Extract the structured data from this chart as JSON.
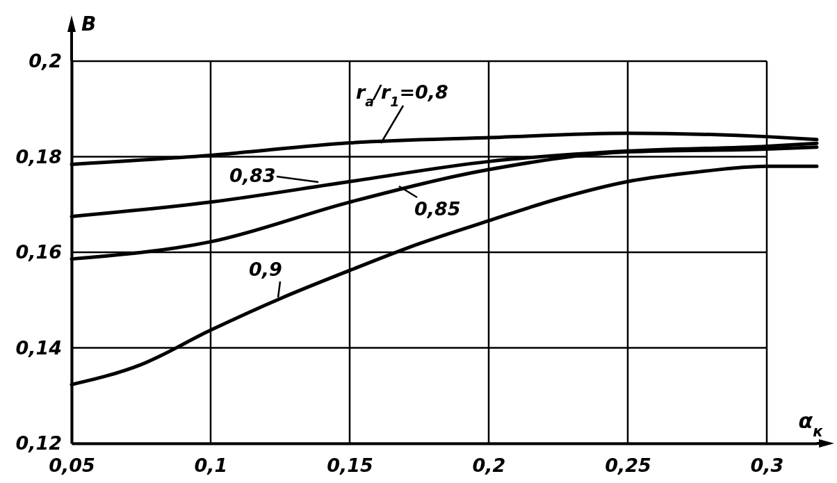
{
  "chart_data": {
    "type": "line",
    "xlabel": "α$_{к}$",
    "ylabel": "B",
    "xlim": [
      0.05,
      0.318
    ],
    "ylim": [
      0.12,
      0.2
    ],
    "xticks": [
      {
        "value": 0.05,
        "label": "0,05"
      },
      {
        "value": 0.1,
        "label": "0,1"
      },
      {
        "value": 0.15,
        "label": "0,15"
      },
      {
        "value": 0.2,
        "label": "0,2"
      },
      {
        "value": 0.25,
        "label": "0,25"
      },
      {
        "value": 0.3,
        "label": "0,3"
      }
    ],
    "yticks": [
      {
        "value": 0.12,
        "label": "0,12"
      },
      {
        "value": 0.14,
        "label": "0,14"
      },
      {
        "value": 0.16,
        "label": "0,16"
      },
      {
        "value": 0.18,
        "label": "0,18"
      },
      {
        "value": 0.2,
        "label": "0,2"
      }
    ],
    "grid": true,
    "marker": "none",
    "line_style": "solid",
    "series": [
      {
        "name": "r$_{a}$/r$_{1}$=0,8",
        "color": "#000000",
        "x": [
          0.05,
          0.1,
          0.15,
          0.2,
          0.25,
          0.3,
          0.318
        ],
        "values": [
          0.1784,
          0.1803,
          0.1829,
          0.184,
          0.1849,
          0.1842,
          0.1836
        ]
      },
      {
        "name": "0,83",
        "color": "#000000",
        "x": [
          0.05,
          0.1,
          0.15,
          0.2,
          0.25,
          0.3,
          0.318
        ],
        "values": [
          0.1675,
          0.1705,
          0.1748,
          0.179,
          0.1812,
          0.1822,
          0.1828
        ]
      },
      {
        "name": "0,85",
        "color": "#000000",
        "x": [
          0.05,
          0.1,
          0.15,
          0.2,
          0.25,
          0.3,
          0.318
        ],
        "values": [
          0.1586,
          0.1622,
          0.1705,
          0.1773,
          0.181,
          0.1816,
          0.182
        ]
      },
      {
        "name": "0,9",
        "color": "#000000",
        "x": [
          0.05,
          0.075,
          0.1,
          0.125,
          0.15,
          0.175,
          0.2,
          0.225,
          0.25,
          0.275,
          0.3,
          0.318
        ],
        "values": [
          0.1323,
          0.1365,
          0.1437,
          0.1503,
          0.1562,
          0.1618,
          0.1666,
          0.1712,
          0.1748,
          0.1768,
          0.178,
          0.178
        ]
      }
    ]
  }
}
